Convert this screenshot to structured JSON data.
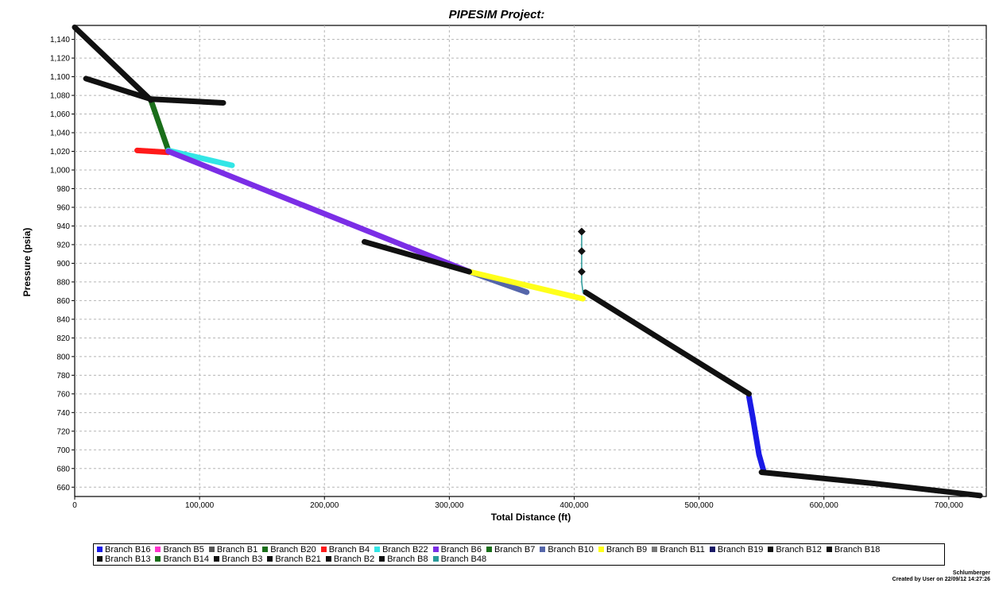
{
  "chart_data": {
    "type": "line",
    "title": "PIPESIM Project:",
    "xlabel": "Total Distance (ft)",
    "ylabel": "Pressure (psia)",
    "xlim": [
      0,
      730000
    ],
    "ylim": [
      650,
      1155
    ],
    "grid": true,
    "legend_position": "bottom",
    "x_ticks": [
      0,
      100000,
      200000,
      300000,
      400000,
      500000,
      600000,
      700000
    ],
    "x_tick_labels": [
      "0",
      "100,000",
      "200,000",
      "300,000",
      "400,000",
      "500,000",
      "600,000",
      "700,000"
    ],
    "y_ticks": [
      660,
      680,
      700,
      720,
      740,
      760,
      780,
      800,
      820,
      840,
      860,
      880,
      900,
      920,
      940,
      960,
      980,
      1000,
      1020,
      1040,
      1060,
      1080,
      1100,
      1120,
      1140
    ],
    "y_tick_labels": [
      "660",
      "680",
      "700",
      "720",
      "740",
      "760",
      "780",
      "800",
      "820",
      "840",
      "860",
      "880",
      "900",
      "920",
      "940",
      "960",
      "980",
      "1,000",
      "1,020",
      "1,040",
      "1,060",
      "1,080",
      "1,100",
      "1,120",
      "1,140"
    ],
    "series": [
      {
        "name": "Branch B16",
        "color": "#1a1ae6",
        "x": [
          540000,
          543000,
          548000,
          552000
        ],
        "y": [
          757,
          735,
          695,
          676
        ]
      },
      {
        "name": "Branch B5",
        "color": "#ff33cc",
        "x": [],
        "y": []
      },
      {
        "name": "Branch B1",
        "color": "#555555",
        "x": [],
        "y": []
      },
      {
        "name": "Branch B20",
        "color": "#1a6e1a",
        "x": [
          61000,
          75000
        ],
        "y": [
          1075,
          1021
        ]
      },
      {
        "name": "Branch B4",
        "color": "#ff1a1a",
        "x": [
          50000,
          75000
        ],
        "y": [
          1021,
          1019
        ]
      },
      {
        "name": "Branch B22",
        "color": "#33e6e6",
        "x": [
          75000,
          126000
        ],
        "y": [
          1021,
          1005
        ]
      },
      {
        "name": "Branch B6",
        "color": "#7b2ee6",
        "x": [
          75000,
          316000
        ],
        "y": [
          1020,
          891
        ]
      },
      {
        "name": "Branch B7",
        "color": "#1a6e1a",
        "x": [],
        "y": []
      },
      {
        "name": "Branch B10",
        "color": "#5566aa",
        "x": [
          316000,
          362000
        ],
        "y": [
          891,
          869
        ]
      },
      {
        "name": "Branch B9",
        "color": "#ffff1a",
        "x": [
          316000,
          407000
        ],
        "y": [
          891,
          862
        ]
      },
      {
        "name": "Branch B11",
        "color": "#777777",
        "x": [],
        "y": []
      },
      {
        "name": "Branch B19",
        "color": "#1a1a66",
        "x": [],
        "y": []
      },
      {
        "name": "Branch B12",
        "color": "#111111",
        "x": [],
        "y": []
      },
      {
        "name": "Branch B18",
        "color": "#111111",
        "x": [
          409000,
          475000,
          540000
        ],
        "y": [
          869,
          814,
          760
        ],
        "thin": false
      },
      {
        "name": "Branch B13",
        "color": "#111111",
        "x": [
          550000,
          640000,
          725000
        ],
        "y": [
          676,
          664,
          651
        ]
      },
      {
        "name": "Branch B14",
        "color": "#1a6e1a",
        "x": [],
        "y": []
      },
      {
        "name": "Branch B3",
        "color": "#111111",
        "x": [
          0,
          61000
        ],
        "y": [
          1153,
          1075
        ]
      },
      {
        "name": "Branch B21",
        "color": "#111111",
        "x": [
          9000,
          61000
        ],
        "y": [
          1098,
          1076
        ]
      },
      {
        "name": "Branch B2",
        "color": "#111111",
        "x": [
          61000,
          119000
        ],
        "y": [
          1076,
          1072
        ]
      },
      {
        "name": "Branch B8",
        "color": "#111111",
        "x": [
          232000,
          316000
        ],
        "y": [
          923,
          891
        ]
      },
      {
        "name": "Branch B48",
        "color": "#2a9a9a",
        "x": [
          406000,
          406000,
          406000,
          406000,
          407000
        ],
        "y": [
          934,
          913,
          891,
          880,
          869
        ],
        "markers": [
          934,
          913,
          891
        ]
      }
    ]
  },
  "footer": {
    "company": "Schlumberger",
    "created": "Created by User on 22/09/12 14:27:26"
  }
}
